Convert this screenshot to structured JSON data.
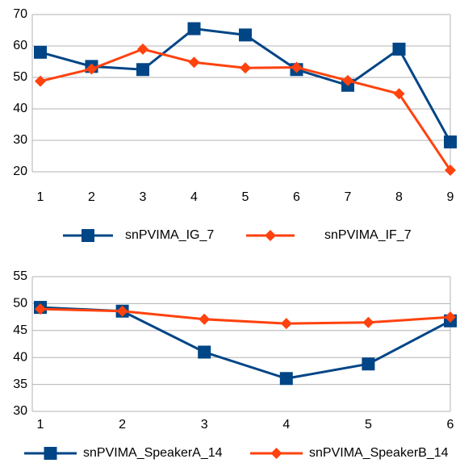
{
  "chart_data": [
    {
      "type": "line",
      "x": [
        1,
        2,
        3,
        4,
        5,
        6,
        7,
        8,
        9
      ],
      "xlim": [
        1,
        9
      ],
      "xticks": [
        1,
        2,
        3,
        4,
        5,
        6,
        7,
        8,
        9
      ],
      "ylim": [
        20,
        70
      ],
      "yticks": [
        20,
        30,
        40,
        50,
        60,
        70
      ],
      "grid": true,
      "series": [
        {
          "name": "snPVIMA_IG_7",
          "color": "#004586",
          "marker": "square",
          "values": [
            58,
            53.5,
            52.5,
            65.5,
            63.5,
            52.5,
            47.5,
            59,
            29.5
          ]
        },
        {
          "name": "snPVIMA_IF_7",
          "color": "#ff420e",
          "marker": "diamond",
          "values": [
            48.8,
            52.7,
            59,
            54.8,
            53,
            53.2,
            49,
            44.8,
            20.5
          ]
        }
      ]
    },
    {
      "type": "line",
      "x": [
        1,
        2,
        3,
        4,
        5,
        6
      ],
      "xlim": [
        1,
        6
      ],
      "xticks": [
        1,
        2,
        3,
        4,
        5,
        6
      ],
      "ylim": [
        30,
        55
      ],
      "yticks": [
        30,
        35,
        40,
        45,
        50,
        55
      ],
      "grid": true,
      "series": [
        {
          "name": "snPVIMA_SpeakerA_14",
          "color": "#004586",
          "marker": "square",
          "values": [
            49.3,
            48.6,
            41,
            36.1,
            38.8,
            46.8
          ]
        },
        {
          "name": "snPVIMA_SpeakerB_14",
          "color": "#ff420e",
          "marker": "diamond",
          "values": [
            49,
            48.6,
            47.1,
            46.3,
            46.5,
            47.5
          ]
        }
      ]
    }
  ]
}
